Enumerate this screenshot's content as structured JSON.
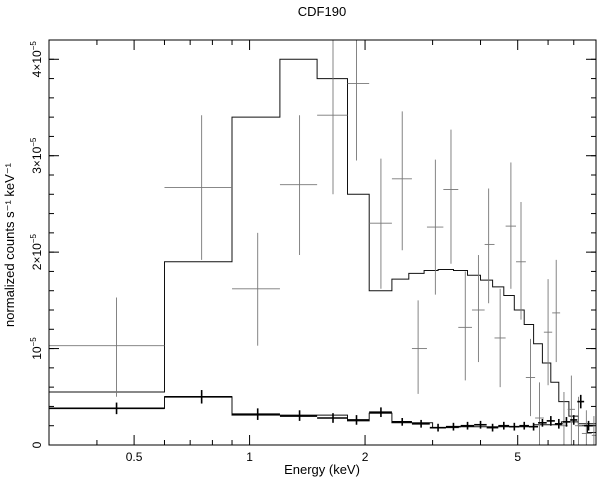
{
  "chart_data": {
    "type": "step",
    "title": "CDF190",
    "xlabel": "Energy (keV)",
    "ylabel": "normalized counts s⁻¹ keV⁻¹",
    "x_scale": "log",
    "xlim": [
      0.3,
      8.0
    ],
    "ylim": [
      0,
      4.2e-05
    ],
    "x_ticks": [
      {
        "value": 0.5,
        "label": "0.5"
      },
      {
        "value": 1,
        "label": "1"
      },
      {
        "value": 2,
        "label": "2"
      },
      {
        "value": 5,
        "label": "5"
      }
    ],
    "y_ticks": [
      {
        "value": 0,
        "label": "0",
        "exp": ""
      },
      {
        "value": 1e-05,
        "label": "10",
        "exp": "−5"
      },
      {
        "value": 2e-05,
        "label": "2×10",
        "exp": "−5"
      },
      {
        "value": 3e-05,
        "label": "3×10",
        "exp": "−5"
      },
      {
        "value": 4e-05,
        "label": "4×10",
        "exp": "−5"
      }
    ],
    "grid": false,
    "model_high": [
      {
        "x0": 0.3,
        "x1": 0.6,
        "y": 5.5e-06
      },
      {
        "x0": 0.6,
        "x1": 0.9,
        "y": 1.9e-05
      },
      {
        "x0": 0.9,
        "x1": 1.2,
        "y": 3.4e-05
      },
      {
        "x0": 1.2,
        "x1": 1.5,
        "y": 4e-05
      },
      {
        "x0": 1.5,
        "x1": 1.8,
        "y": 3.8e-05
      },
      {
        "x0": 1.8,
        "x1": 2.05,
        "y": 2.6e-05
      },
      {
        "x0": 2.05,
        "x1": 2.35,
        "y": 1.6e-05
      },
      {
        "x0": 2.35,
        "x1": 2.6,
        "y": 1.72e-05
      },
      {
        "x0": 2.6,
        "x1": 2.85,
        "y": 1.78e-05
      },
      {
        "x0": 2.85,
        "x1": 3.1,
        "y": 1.81e-05
      },
      {
        "x0": 3.1,
        "x1": 3.4,
        "y": 1.82e-05
      },
      {
        "x0": 3.4,
        "x1": 3.7,
        "y": 1.81e-05
      },
      {
        "x0": 3.7,
        "x1": 4.0,
        "y": 1.76e-05
      },
      {
        "x0": 4.0,
        "x1": 4.3,
        "y": 1.71e-05
      },
      {
        "x0": 4.3,
        "x1": 4.6,
        "y": 1.64e-05
      },
      {
        "x0": 4.6,
        "x1": 4.9,
        "y": 1.55e-05
      },
      {
        "x0": 4.9,
        "x1": 5.2,
        "y": 1.4e-05
      },
      {
        "x0": 5.2,
        "x1": 5.5,
        "y": 1.25e-05
      },
      {
        "x0": 5.5,
        "x1": 5.8,
        "y": 1.05e-05
      },
      {
        "x0": 5.8,
        "x1": 6.1,
        "y": 8.5e-06
      },
      {
        "x0": 6.1,
        "x1": 6.4,
        "y": 6.5e-06
      },
      {
        "x0": 6.4,
        "x1": 6.8,
        "y": 4.5e-06
      },
      {
        "x0": 6.8,
        "x1": 7.2,
        "y": 3e-06
      },
      {
        "x0": 7.2,
        "x1": 7.6,
        "y": 2e-06
      },
      {
        "x0": 7.6,
        "x1": 8.0,
        "y": 1.3e-06
      }
    ],
    "data_high": [
      {
        "x": 0.45,
        "xlo": 0.3,
        "xhi": 0.6,
        "y": 1.03e-05,
        "ylo": 5e-06,
        "yhi": 1.53e-05
      },
      {
        "x": 0.75,
        "xlo": 0.6,
        "xhi": 0.9,
        "y": 2.67e-05,
        "ylo": 1.92e-05,
        "yhi": 3.42e-05
      },
      {
        "x": 1.05,
        "xlo": 0.9,
        "xhi": 1.2,
        "y": 1.62e-05,
        "ylo": 1.03e-05,
        "yhi": 2.2e-05
      },
      {
        "x": 1.35,
        "xlo": 1.2,
        "xhi": 1.5,
        "y": 2.7e-05,
        "ylo": 1.97e-05,
        "yhi": 3.42e-05
      },
      {
        "x": 1.65,
        "xlo": 1.5,
        "xhi": 1.8,
        "y": 3.42e-05,
        "ylo": 2.6e-05,
        "yhi": 4.2e-05
      },
      {
        "x": 1.9,
        "xlo": 1.8,
        "xhi": 2.05,
        "y": 3.75e-05,
        "ylo": 2.95e-05,
        "yhi": 4.2e-05
      },
      {
        "x": 2.2,
        "xlo": 2.05,
        "xhi": 2.35,
        "y": 2.3e-05,
        "ylo": 1.62e-05,
        "yhi": 2.97e-05
      },
      {
        "x": 2.5,
        "xlo": 2.35,
        "xhi": 2.65,
        "y": 2.76e-05,
        "ylo": 2.02e-05,
        "yhi": 3.46e-05
      },
      {
        "x": 2.75,
        "xlo": 2.65,
        "xhi": 2.9,
        "y": 1e-05,
        "ylo": 5.3e-06,
        "yhi": 1.5e-05
      },
      {
        "x": 3.05,
        "xlo": 2.9,
        "xhi": 3.2,
        "y": 2.26e-05,
        "ylo": 1.56e-05,
        "yhi": 2.96e-05
      },
      {
        "x": 3.35,
        "xlo": 3.2,
        "xhi": 3.5,
        "y": 2.65e-05,
        "ylo": 1.88e-05,
        "yhi": 3.27e-05
      },
      {
        "x": 3.65,
        "xlo": 3.5,
        "xhi": 3.8,
        "y": 1.22e-05,
        "ylo": 6.7e-06,
        "yhi": 1.8e-05
      },
      {
        "x": 3.95,
        "xlo": 3.8,
        "xhi": 4.1,
        "y": 1.4e-05,
        "ylo": 8.6e-06,
        "yhi": 1.97e-05
      },
      {
        "x": 4.2,
        "xlo": 4.1,
        "xhi": 4.35,
        "y": 2.08e-05,
        "ylo": 1.47e-05,
        "yhi": 2.66e-05
      },
      {
        "x": 4.5,
        "xlo": 4.35,
        "xhi": 4.65,
        "y": 1.11e-05,
        "ylo": 6e-06,
        "yhi": 1.62e-05
      },
      {
        "x": 4.8,
        "xlo": 4.65,
        "xhi": 4.95,
        "y": 2.27e-05,
        "ylo": 1.62e-05,
        "yhi": 2.93e-05
      },
      {
        "x": 5.1,
        "xlo": 4.95,
        "xhi": 5.25,
        "y": 1.9e-05,
        "ylo": 1.3e-05,
        "yhi": 2.52e-05
      },
      {
        "x": 5.4,
        "xlo": 5.25,
        "xhi": 5.55,
        "y": 7e-06,
        "ylo": 3e-06,
        "yhi": 1.1e-05
      },
      {
        "x": 5.7,
        "xlo": 5.55,
        "xhi": 5.85,
        "y": 2.8e-06,
        "ylo": 0,
        "yhi": 6.5e-06
      },
      {
        "x": 6.0,
        "xlo": 5.85,
        "xhi": 6.15,
        "y": 1.17e-05,
        "ylo": 6.2e-06,
        "yhi": 1.72e-05
      },
      {
        "x": 6.3,
        "xlo": 6.15,
        "xhi": 6.45,
        "y": 1.37e-05,
        "ylo": 8.6e-06,
        "yhi": 1.92e-05
      },
      {
        "x": 6.6,
        "xlo": 6.45,
        "xhi": 6.75,
        "y": 2e-06,
        "ylo": 0,
        "yhi": 5.5e-06
      },
      {
        "x": 6.9,
        "xlo": 6.75,
        "xhi": 7.05,
        "y": 3.7e-06,
        "ylo": 0,
        "yhi": 7.2e-06
      },
      {
        "x": 7.2,
        "xlo": 7.05,
        "xhi": 7.35,
        "y": 2e-06,
        "ylo": 0,
        "yhi": 5e-06
      },
      {
        "x": 7.55,
        "xlo": 7.35,
        "xhi": 7.8,
        "y": 1.2e-06,
        "ylo": 0,
        "yhi": 3.6e-06
      },
      {
        "x": 7.9,
        "xlo": 7.8,
        "xhi": 8.0,
        "y": 1e-06,
        "ylo": 0,
        "yhi": 3e-06
      }
    ],
    "model_low": [
      {
        "x0": 0.3,
        "x1": 0.6,
        "y": 3.8e-06
      },
      {
        "x0": 0.6,
        "x1": 0.9,
        "y": 5e-06
      },
      {
        "x0": 0.9,
        "x1": 1.8,
        "y": 3.1e-06
      },
      {
        "x0": 1.8,
        "x1": 2.05,
        "y": 2.5e-06
      },
      {
        "x0": 2.05,
        "x1": 2.35,
        "y": 3.3e-06
      },
      {
        "x0": 2.35,
        "x1": 3.0,
        "y": 2.3e-06
      },
      {
        "x0": 3.0,
        "x1": 3.5,
        "y": 1.8e-06
      },
      {
        "x0": 3.5,
        "x1": 5.5,
        "y": 1.9e-06
      },
      {
        "x0": 5.5,
        "x1": 6.5,
        "y": 2.1e-06
      },
      {
        "x0": 6.5,
        "x1": 7.2,
        "y": 2.4e-06
      },
      {
        "x0": 7.2,
        "x1": 8.0,
        "y": 2.2e-06
      }
    ],
    "data_low": [
      {
        "x": 0.45,
        "xlo": 0.3,
        "xhi": 0.6,
        "y": 3.8e-06,
        "ylo": 3.2e-06,
        "yhi": 4.4e-06
      },
      {
        "x": 0.75,
        "xlo": 0.6,
        "xhi": 0.9,
        "y": 5e-06,
        "ylo": 4.3e-06,
        "yhi": 5.7e-06
      },
      {
        "x": 1.05,
        "xlo": 0.9,
        "xhi": 1.2,
        "y": 3.2e-06,
        "ylo": 2.6e-06,
        "yhi": 3.8e-06
      },
      {
        "x": 1.35,
        "xlo": 1.2,
        "xhi": 1.5,
        "y": 3e-06,
        "ylo": 2.5e-06,
        "yhi": 3.6e-06
      },
      {
        "x": 1.65,
        "xlo": 1.5,
        "xhi": 1.8,
        "y": 2.8e-06,
        "ylo": 2.3e-06,
        "yhi": 3.3e-06
      },
      {
        "x": 1.9,
        "xlo": 1.8,
        "xhi": 2.05,
        "y": 2.6e-06,
        "ylo": 2.1e-06,
        "yhi": 3.1e-06
      },
      {
        "x": 2.2,
        "xlo": 2.05,
        "xhi": 2.35,
        "y": 3.4e-06,
        "ylo": 2.9e-06,
        "yhi": 3.9e-06
      },
      {
        "x": 2.5,
        "xlo": 2.35,
        "xhi": 2.65,
        "y": 2.4e-06,
        "ylo": 2e-06,
        "yhi": 2.8e-06
      },
      {
        "x": 2.8,
        "xlo": 2.65,
        "xhi": 2.95,
        "y": 2.2e-06,
        "ylo": 1.8e-06,
        "yhi": 2.6e-06
      },
      {
        "x": 3.1,
        "xlo": 2.95,
        "xhi": 3.25,
        "y": 1.8e-06,
        "ylo": 1.4e-06,
        "yhi": 2.2e-06
      },
      {
        "x": 3.4,
        "xlo": 3.25,
        "xhi": 3.55,
        "y": 1.9e-06,
        "ylo": 1.5e-06,
        "yhi": 2.3e-06
      },
      {
        "x": 3.7,
        "xlo": 3.55,
        "xhi": 3.85,
        "y": 2e-06,
        "ylo": 1.6e-06,
        "yhi": 2.4e-06
      },
      {
        "x": 4.0,
        "xlo": 3.85,
        "xhi": 4.15,
        "y": 2.1e-06,
        "ylo": 1.7e-06,
        "yhi": 2.5e-06
      },
      {
        "x": 4.3,
        "xlo": 4.15,
        "xhi": 4.45,
        "y": 1.8e-06,
        "ylo": 1.4e-06,
        "yhi": 2.2e-06
      },
      {
        "x": 4.6,
        "xlo": 4.45,
        "xhi": 4.75,
        "y": 2e-06,
        "ylo": 1.6e-06,
        "yhi": 2.4e-06
      },
      {
        "x": 4.9,
        "xlo": 4.75,
        "xhi": 5.05,
        "y": 1.9e-06,
        "ylo": 1.5e-06,
        "yhi": 2.3e-06
      },
      {
        "x": 5.2,
        "xlo": 5.05,
        "xhi": 5.35,
        "y": 2e-06,
        "ylo": 1.6e-06,
        "yhi": 2.4e-06
      },
      {
        "x": 5.5,
        "xlo": 5.35,
        "xhi": 5.65,
        "y": 1.9e-06,
        "ylo": 1.5e-06,
        "yhi": 2.3e-06
      },
      {
        "x": 5.8,
        "xlo": 5.65,
        "xhi": 5.95,
        "y": 2.3e-06,
        "ylo": 1.9e-06,
        "yhi": 2.7e-06
      },
      {
        "x": 6.1,
        "xlo": 5.95,
        "xhi": 6.25,
        "y": 2.5e-06,
        "ylo": 2e-06,
        "yhi": 3e-06
      },
      {
        "x": 6.4,
        "xlo": 6.25,
        "xhi": 6.55,
        "y": 2.2e-06,
        "ylo": 1.7e-06,
        "yhi": 2.7e-06
      },
      {
        "x": 6.7,
        "xlo": 6.55,
        "xhi": 6.85,
        "y": 2.4e-06,
        "ylo": 1.9e-06,
        "yhi": 2.9e-06
      },
      {
        "x": 7.0,
        "xlo": 6.85,
        "xhi": 7.15,
        "y": 2.6e-06,
        "ylo": 2.1e-06,
        "yhi": 3.1e-06
      },
      {
        "x": 7.3,
        "xlo": 7.15,
        "xhi": 7.45,
        "y": 4.5e-06,
        "ylo": 3.8e-06,
        "yhi": 5.2e-06
      },
      {
        "x": 7.65,
        "xlo": 7.45,
        "xhi": 7.85,
        "y": 2e-06,
        "ylo": 1.5e-06,
        "yhi": 2.5e-06
      }
    ]
  }
}
